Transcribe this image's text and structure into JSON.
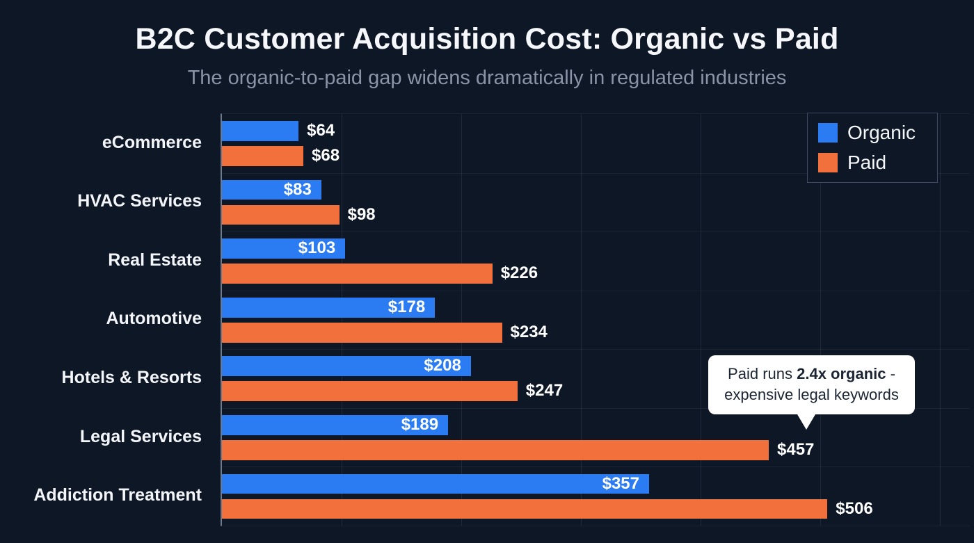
{
  "title": "B2C Customer Acquisition Cost: Organic vs Paid",
  "subtitle": "The organic-to-paid gap widens dramatically in regulated industries",
  "colors": {
    "background": "#0e1726",
    "title_text": "#f5f7fa",
    "subtitle_text": "#8b93a7",
    "organic": "#2b7bf3",
    "paid": "#f2703c"
  },
  "annotation": {
    "prefix": "Paid runs ",
    "bold": "2.4x organic",
    "suffix": " - expensive legal keywords"
  },
  "chart_data": {
    "type": "bar",
    "orientation": "horizontal",
    "title": "B2C Customer Acquisition Cost: Organic vs Paid",
    "subtitle": "The organic-to-paid gap widens dramatically in regulated industries",
    "categories": [
      "eCommerce",
      "HVAC Services",
      "Real Estate",
      "Automotive",
      "Hotels & Resorts",
      "Legal Services",
      "Addiction Treatment"
    ],
    "series": [
      {
        "name": "Organic",
        "color": "#2b7bf3",
        "values": [
          64,
          83,
          103,
          178,
          208,
          189,
          357
        ],
        "labels": [
          "$64",
          "$83",
          "$103",
          "$178",
          "$208",
          "$189",
          "$357"
        ],
        "labels_inside": [
          false,
          true,
          true,
          true,
          true,
          true,
          true
        ]
      },
      {
        "name": "Paid",
        "color": "#f2703c",
        "values": [
          68,
          98,
          226,
          234,
          247,
          457,
          506
        ],
        "labels": [
          "$68",
          "$98",
          "$226",
          "$234",
          "$247",
          "$457",
          "$506"
        ],
        "labels_inside": [
          false,
          false,
          false,
          false,
          false,
          false,
          false
        ]
      }
    ],
    "xlim": [
      0,
      625
    ],
    "gridline_interval": 100,
    "grid": true,
    "legend_position": "top-right",
    "annotation_target": "Legal Services Paid bar ($457)"
  }
}
